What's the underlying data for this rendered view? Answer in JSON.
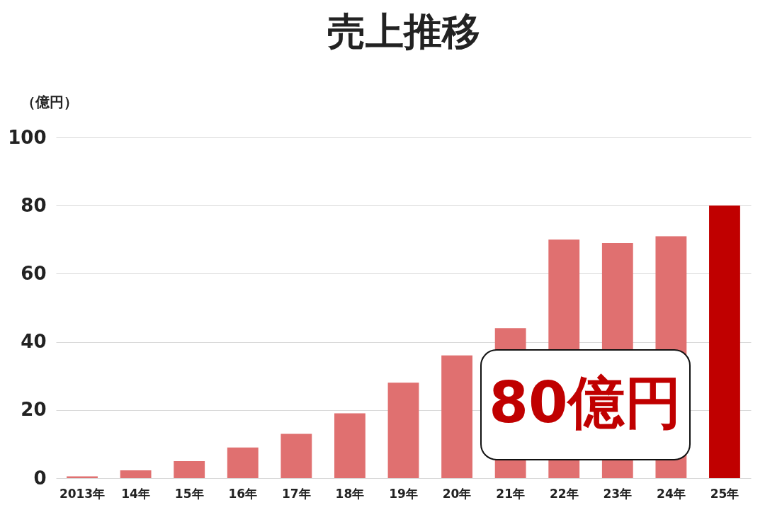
{
  "chart_data": {
    "type": "bar",
    "title": "売上推移",
    "ylabel": "（億円）",
    "categories": [
      "2013年",
      "14年",
      "15年",
      "16年",
      "17年",
      "18年",
      "19年",
      "20年",
      "21年",
      "22年",
      "23年",
      "24年",
      "25年"
    ],
    "values": [
      0.5,
      2.3,
      5,
      9,
      13,
      19,
      28,
      36,
      44,
      70,
      69,
      71,
      80
    ],
    "colors": [
      "#e07070",
      "#e07070",
      "#e07070",
      "#e07070",
      "#e07070",
      "#e07070",
      "#e07070",
      "#e07070",
      "#e07070",
      "#e07070",
      "#e07070",
      "#e07070",
      "#c00000"
    ],
    "ylim": [
      0,
      100
    ],
    "yticks": [
      0,
      20,
      40,
      60,
      80,
      100
    ],
    "grid": "y",
    "annotations": [
      "80億円"
    ]
  }
}
